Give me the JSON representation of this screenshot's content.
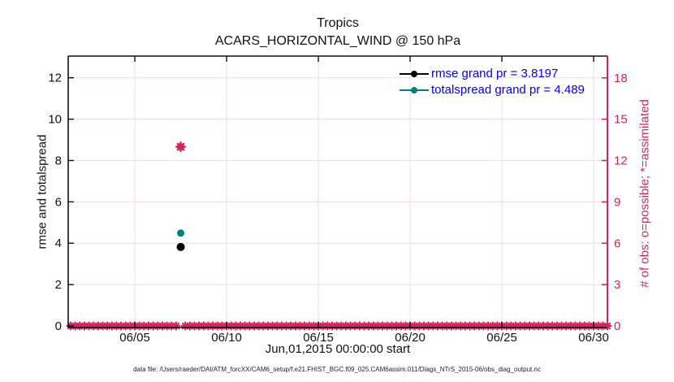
{
  "figure": {
    "caption": "data file: /Users/raeder/DAI/ATM_forcXX/CAM6_setup/f.e21.FHIST_BGC.f09_025.CAM6assim.011/Diags_NTrS_2015-06/obs_diag_output.nc"
  },
  "chart_data": {
    "type": "line",
    "title": "Tropics",
    "subtitle": "ACARS_HORIZONTAL_WIND @ 150 hPa",
    "xlabel": "Jun,01,2015 00:00:00 start",
    "ylabel_left": "rmse and totalspread",
    "ylabel_right": "# of obs: o=possible; *=assimilated",
    "x_unit": "day of June 2015",
    "xlim": [
      1.37,
      30.75
    ],
    "xticks": [
      {
        "day": 5,
        "label": "06/05"
      },
      {
        "day": 10,
        "label": "06/10"
      },
      {
        "day": 15,
        "label": "06/15"
      },
      {
        "day": 20,
        "label": "06/20"
      },
      {
        "day": 25,
        "label": "06/25"
      },
      {
        "day": 30,
        "label": "06/30"
      }
    ],
    "ylim_left": [
      0,
      13.05
    ],
    "yticks_left": [
      0,
      2,
      4,
      6,
      8,
      10,
      12
    ],
    "ylim_right": [
      0,
      19.58
    ],
    "yticks_right": [
      0,
      3,
      6,
      9,
      12,
      15,
      18
    ],
    "grid": true,
    "legend_position": "top-right-inside",
    "legend": [
      {
        "label": "rmse grand pr = 3.8197",
        "color": "#000000",
        "marker": "filled-circle"
      },
      {
        "label": "totalspread grand pr = 4.489",
        "color": "#008078",
        "marker": "filled-circle"
      }
    ],
    "series": [
      {
        "name": "rmse",
        "axis": "left",
        "color": "#000000",
        "marker": "filled-circle",
        "points": [
          {
            "day": 7.5,
            "value": 3.8197
          }
        ]
      },
      {
        "name": "totalspread",
        "axis": "left",
        "color": "#008078",
        "marker": "filled-circle",
        "points": [
          {
            "day": 7.5,
            "value": 4.489
          }
        ]
      },
      {
        "name": "obs_possible",
        "axis": "right",
        "color": "#d2265c",
        "marker": "circle-outline",
        "bins": {
          "start_day": 1.5,
          "end_day": 30.75,
          "step_days": 0.25,
          "default_count": 0
        },
        "points": [
          {
            "day": 7.5,
            "value": 13
          }
        ]
      },
      {
        "name": "obs_assimilated",
        "axis": "right",
        "color": "#d2265c",
        "marker": "asterisk",
        "bins": {
          "start_day": 1.5,
          "end_day": 30.75,
          "step_days": 0.25,
          "default_count": 0
        },
        "points": [
          {
            "day": 7.5,
            "value": 13
          }
        ]
      }
    ],
    "colors": {
      "axis_left": "#111111",
      "axis_right": "#d2265c",
      "grid": "#f6d9e3",
      "legend_text": "#0000ee",
      "tick_text_left": "#111111",
      "tick_text_right": "#d2265c"
    }
  }
}
